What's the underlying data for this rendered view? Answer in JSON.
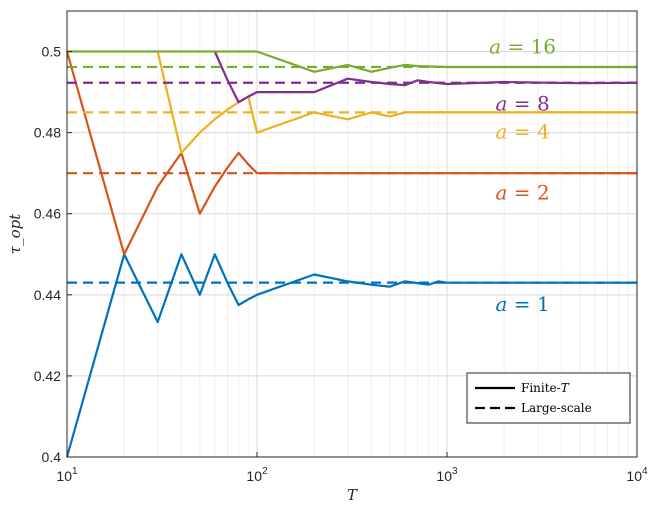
{
  "chart_data": {
    "type": "line",
    "xscale": "log",
    "xlabel": "T",
    "ylabel": "τ_opt",
    "xlim": [
      10,
      10000
    ],
    "ylim": [
      0.4,
      0.51
    ],
    "grid": true,
    "x_ticks": [
      10,
      100,
      1000,
      10000
    ],
    "x_tick_base": "10",
    "x_tick_exps": [
      "1",
      "2",
      "3",
      "4"
    ],
    "y_ticks": [
      "0.4",
      "0.42",
      "0.44",
      "0.46",
      "0.48",
      "0.5"
    ],
    "legend": {
      "placement": "bottom-right",
      "entries": [
        {
          "style": "solid",
          "label_main": "Finite-",
          "label_var": "T"
        },
        {
          "style": "dashed",
          "label_main": "Large-scale",
          "label_var": ""
        }
      ]
    },
    "series": [
      {
        "label_var": "a",
        "label_eq": " = ",
        "label_val": "1",
        "color": "#0072BD",
        "asymptote": 0.443,
        "label_at": [
          2500,
          0.436
        ],
        "finite": [
          [
            10,
            0.4
          ],
          [
            20,
            0.45
          ],
          [
            30,
            0.4333
          ],
          [
            40,
            0.45
          ],
          [
            50,
            0.44
          ],
          [
            60,
            0.45
          ],
          [
            70,
            0.4429
          ],
          [
            80,
            0.4375
          ],
          [
            90,
            0.4389
          ],
          [
            100,
            0.44
          ],
          [
            200,
            0.445
          ],
          [
            300,
            0.4433
          ],
          [
            400,
            0.4425
          ],
          [
            500,
            0.442
          ],
          [
            600,
            0.4433
          ],
          [
            700,
            0.4429
          ],
          [
            800,
            0.4425
          ],
          [
            900,
            0.4433
          ],
          [
            1000,
            0.443
          ],
          [
            2000,
            0.443
          ],
          [
            5000,
            0.443
          ],
          [
            10000,
            0.443
          ]
        ]
      },
      {
        "label_var": "a",
        "label_eq": " = ",
        "label_val": "2",
        "color": "#D95319",
        "asymptote": 0.47,
        "label_at": [
          2500,
          0.4635
        ],
        "finite": [
          [
            10,
            0.5
          ],
          [
            20,
            0.45
          ],
          [
            30,
            0.4667
          ],
          [
            40,
            0.475
          ],
          [
            50,
            0.46
          ],
          [
            60,
            0.4667
          ],
          [
            70,
            0.4714
          ],
          [
            80,
            0.475
          ],
          [
            90,
            0.4722
          ],
          [
            100,
            0.47
          ],
          [
            200,
            0.47
          ],
          [
            500,
            0.47
          ],
          [
            1000,
            0.47
          ],
          [
            5000,
            0.47
          ],
          [
            10000,
            0.47
          ]
        ]
      },
      {
        "label_var": "a",
        "label_eq": " = ",
        "label_val": "4",
        "color": "#EDB120",
        "asymptote": 0.485,
        "label_at": [
          2500,
          0.4785
        ],
        "finite": [
          [
            30,
            0.5
          ],
          [
            40,
            0.475
          ],
          [
            50,
            0.48
          ],
          [
            60,
            0.4833
          ],
          [
            70,
            0.4857
          ],
          [
            80,
            0.4875
          ],
          [
            90,
            0.4889
          ],
          [
            100,
            0.48
          ],
          [
            200,
            0.485
          ],
          [
            300,
            0.4833
          ],
          [
            400,
            0.485
          ],
          [
            500,
            0.484
          ],
          [
            600,
            0.485
          ],
          [
            1000,
            0.485
          ],
          [
            10000,
            0.485
          ]
        ]
      },
      {
        "label_var": "a",
        "label_eq": " = ",
        "label_val": "8",
        "color": "#7E2F8E",
        "asymptote": 0.4923,
        "label_at": [
          2500,
          0.4855
        ],
        "finite": [
          [
            60,
            0.5
          ],
          [
            70,
            0.4929
          ],
          [
            80,
            0.4875
          ],
          [
            90,
            0.4889
          ],
          [
            100,
            0.49
          ],
          [
            200,
            0.49
          ],
          [
            300,
            0.4933
          ],
          [
            400,
            0.4925
          ],
          [
            500,
            0.492
          ],
          [
            600,
            0.4917
          ],
          [
            700,
            0.4929
          ],
          [
            800,
            0.4925
          ],
          [
            1000,
            0.492
          ],
          [
            2000,
            0.4925
          ],
          [
            5000,
            0.4922
          ],
          [
            10000,
            0.4923
          ]
        ]
      },
      {
        "label_var": "a",
        "label_eq": " = ",
        "label_val": "16",
        "color": "#77AC30",
        "asymptote": 0.4962,
        "label_at": [
          2500,
          0.4995
        ],
        "finite": [
          [
            10,
            0.5
          ],
          [
            100,
            0.5
          ],
          [
            200,
            0.495
          ],
          [
            300,
            0.4967
          ],
          [
            400,
            0.495
          ],
          [
            500,
            0.496
          ],
          [
            600,
            0.4967
          ],
          [
            700,
            0.4964
          ],
          [
            1000,
            0.4962
          ],
          [
            2000,
            0.4962
          ],
          [
            10000,
            0.4962
          ]
        ]
      }
    ]
  }
}
